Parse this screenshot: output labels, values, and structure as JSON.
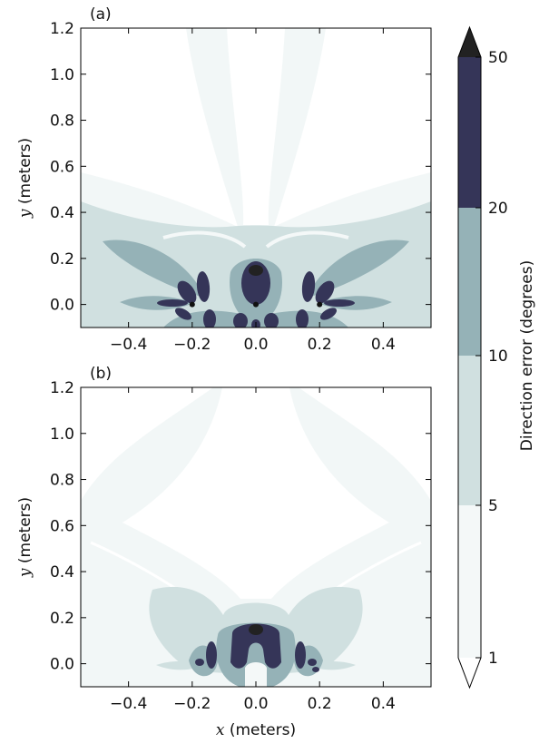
{
  "chart_data": [
    {
      "type": "heatmap",
      "panel_label": "(a)",
      "xlabel": "",
      "ylabel_var": "y",
      "ylabel_unit": " (meters)",
      "xlim": [
        -0.55,
        0.55
      ],
      "ylim": [
        -0.1,
        1.2
      ],
      "xticks": [
        -0.4,
        -0.2,
        0.0,
        0.2,
        0.4
      ],
      "xtick_labels": [
        "−0.4",
        "−0.2",
        "0.0",
        "0.2",
        "0.4"
      ],
      "yticks": [
        0.0,
        0.2,
        0.4,
        0.6,
        0.8,
        1.0,
        1.2
      ],
      "ytick_labels": [
        "0.0",
        "0.2",
        "0.4",
        "0.6",
        "0.8",
        "1.0",
        "1.2"
      ],
      "sensor_positions_x": [
        -0.2,
        0.0,
        0.2
      ],
      "sensor_y": 0.0
    },
    {
      "type": "heatmap",
      "panel_label": "(b)",
      "xlabel_var": "x",
      "xlabel_unit": " (meters)",
      "ylabel_var": "y",
      "ylabel_unit": " (meters)",
      "xlim": [
        -0.55,
        0.55
      ],
      "ylim": [
        -0.1,
        1.2
      ],
      "xticks": [
        -0.4,
        -0.2,
        0.0,
        0.2,
        0.4
      ],
      "xtick_labels": [
        "−0.4",
        "−0.2",
        "0.0",
        "0.2",
        "0.4"
      ],
      "yticks": [
        0.0,
        0.2,
        0.4,
        0.6,
        0.8,
        1.0,
        1.2
      ],
      "ytick_labels": [
        "0.0",
        "0.2",
        "0.4",
        "0.6",
        "0.8",
        "1.0",
        "1.2"
      ],
      "sensor_positions_x": [
        -0.2,
        0.0,
        0.2
      ],
      "sensor_y": 0.0
    }
  ],
  "colorbar": {
    "label": "Direction error (degrees)",
    "levels": [
      1,
      5,
      10,
      20,
      50
    ],
    "level_labels": [
      "1",
      "5",
      "10",
      "20",
      "50"
    ],
    "colors": [
      "#f4f8f8",
      "#d0e0e0",
      "#95b2b7",
      "#353558"
    ],
    "extend_max_color": "#222222",
    "extend_min_color": "#ffffff"
  }
}
